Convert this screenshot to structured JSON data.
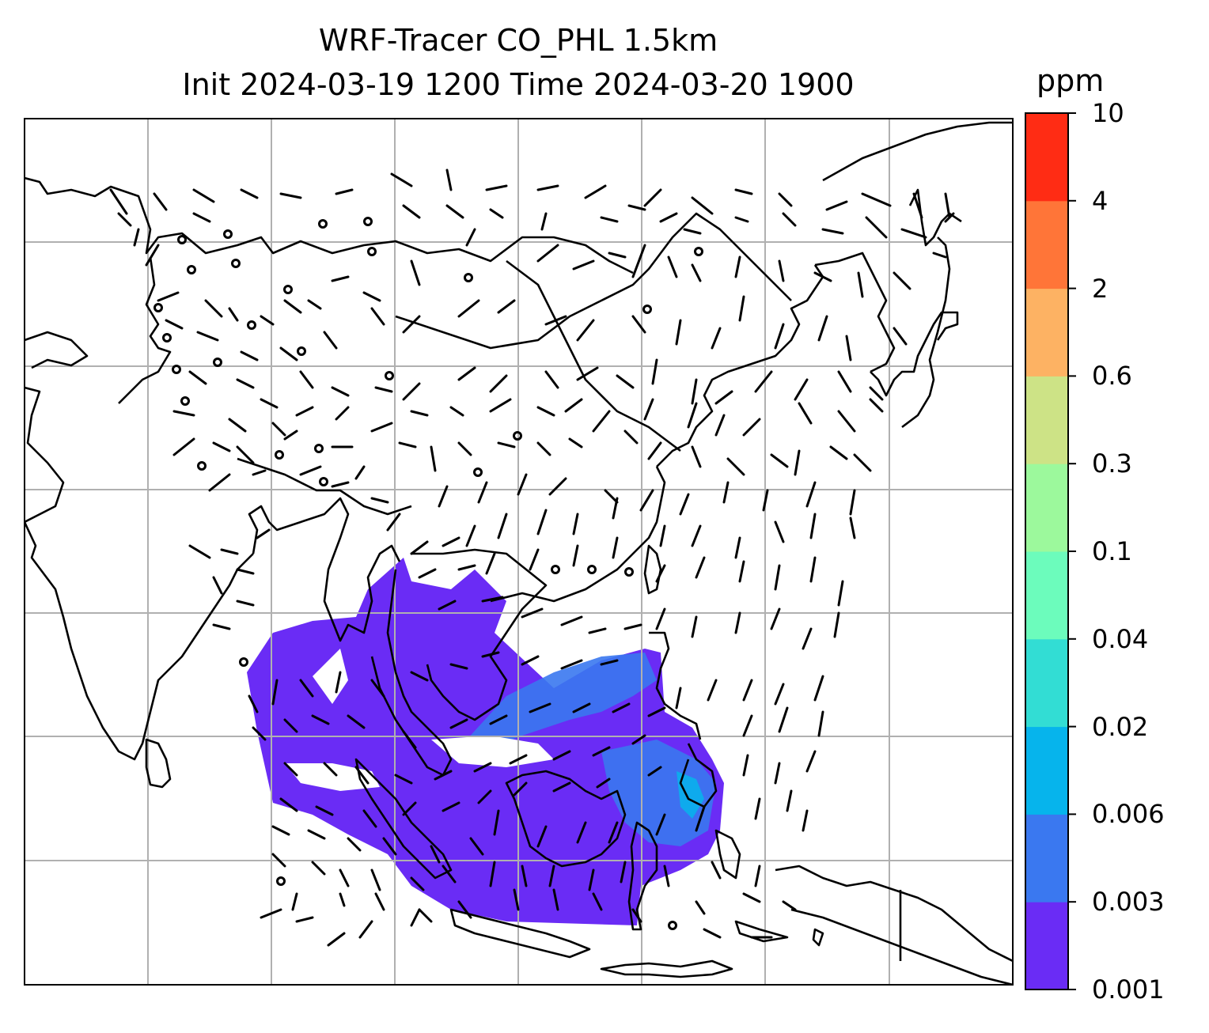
{
  "title": {
    "line1": "WRF-Tracer CO_PHL 1.5km",
    "line2": "Init 2024-03-19 1200 Time 2024-03-20 1900"
  },
  "colorbar": {
    "unit": "ppm",
    "levels": [
      "0.001",
      "0.003",
      "0.006",
      "0.02",
      "0.04",
      "0.1",
      "0.3",
      "0.6",
      "2",
      "4",
      "10"
    ],
    "colors": [
      "#6a2cf5",
      "#3a78f0",
      "#06b4ec",
      "#32ddd4",
      "#6cfcbc",
      "#9cf99c",
      "#cde386",
      "#fdb263",
      "#ff7538",
      "#ff2c14"
    ]
  },
  "map": {
    "plume_colors": {
      "low": "#6a2cf5",
      "mid": "#3a78f0",
      "high": "#06b4ec"
    },
    "grid_color": "#b0b0b0",
    "coast_color": "#000000"
  }
}
